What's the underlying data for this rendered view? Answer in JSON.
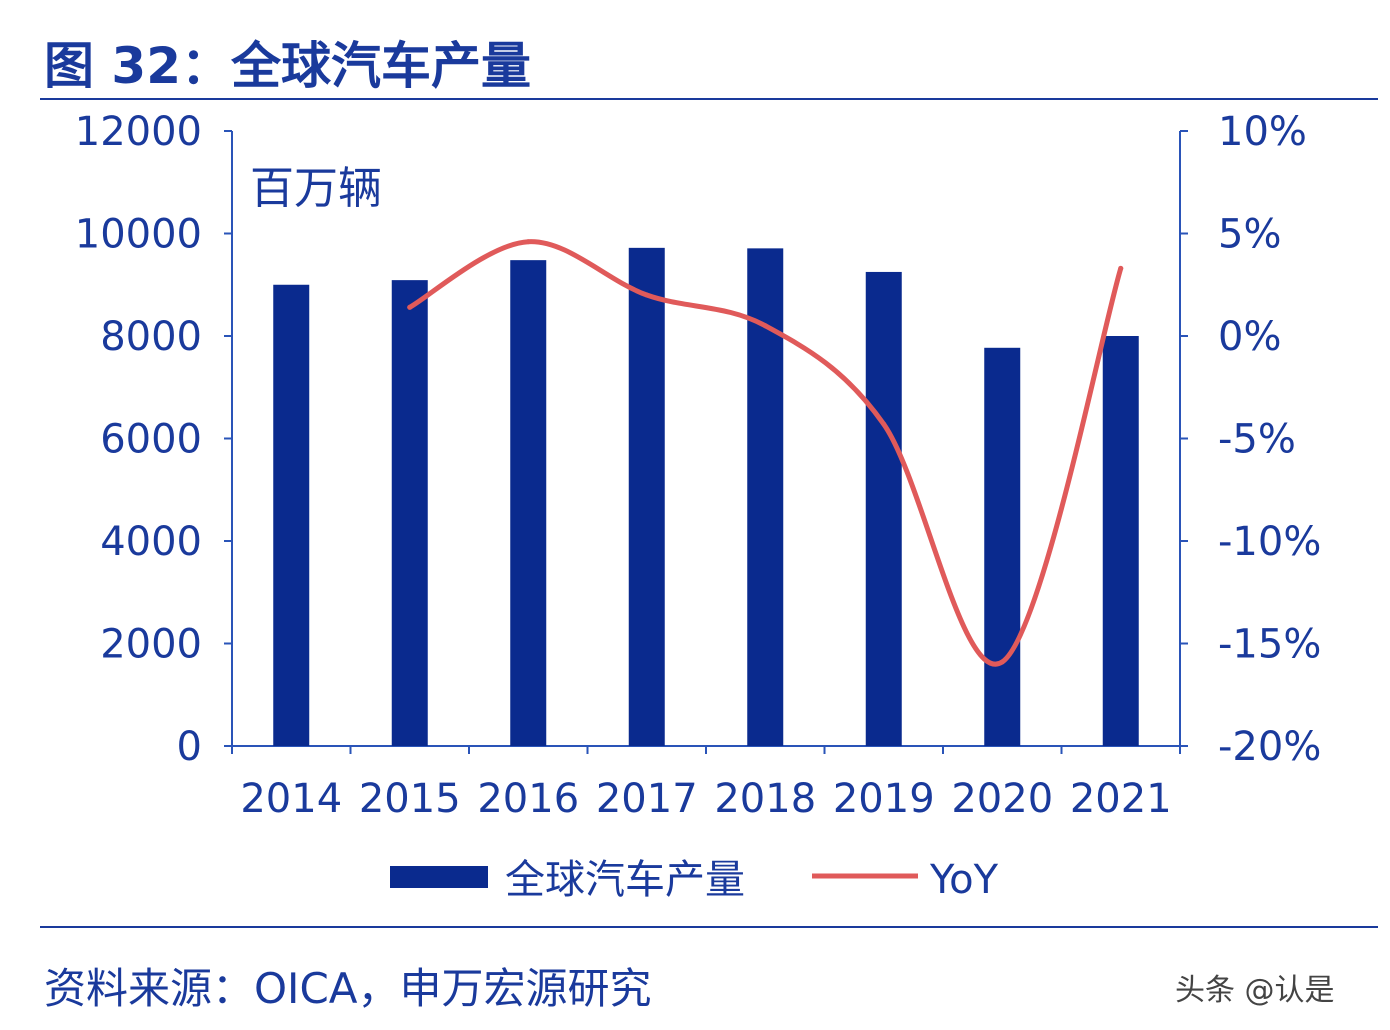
{
  "title": "图 32：全球汽车产量",
  "source": "资料来源：OICA，申万宏源研究",
  "watermark": "头条 @认是",
  "colors": {
    "bar": "#0a2a8e",
    "line": "#e05a5a",
    "axis": "#2a54b8",
    "text": "#1a3a9c"
  },
  "chart_data": {
    "type": "bar+line",
    "unit_label": "百万辆",
    "categories": [
      "2014",
      "2015",
      "2016",
      "2017",
      "2018",
      "2019",
      "2020",
      "2021"
    ],
    "series": [
      {
        "name": "全球汽车产量",
        "type": "bar",
        "axis": "left",
        "values": [
          9000,
          9090,
          9480,
          9720,
          9710,
          9250,
          7770,
          8000
        ]
      },
      {
        "name": "YoY",
        "type": "line",
        "axis": "right",
        "values": [
          null,
          1.4,
          4.6,
          2.0,
          0.5,
          -4.3,
          -15.9,
          3.3
        ]
      }
    ],
    "left_axis": {
      "range": [
        0,
        12000
      ],
      "ticks": [
        "0",
        "2000",
        "4000",
        "6000",
        "8000",
        "10000",
        "12000"
      ]
    },
    "right_axis": {
      "range": [
        -20,
        10
      ],
      "ticks": [
        "-20%",
        "-15%",
        "-10%",
        "-5%",
        "0%",
        "5%",
        "10%"
      ]
    },
    "legend_position": "bottom",
    "grid": false
  }
}
